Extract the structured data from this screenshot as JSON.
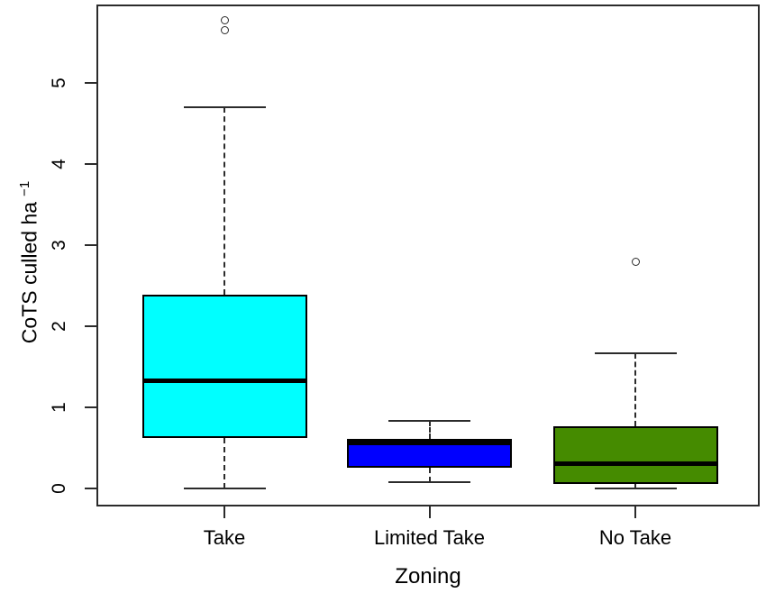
{
  "figure": {
    "background": "#ffffff",
    "axis_color": "#2b2b2b",
    "text_color": "#000000",
    "median_color": "#000000"
  },
  "chart_data": {
    "type": "boxplot",
    "title": "",
    "xlabel": "Zoning",
    "ylabel": "CoTS culled ha",
    "ylabel_superscript": "−1",
    "categories": [
      "Take",
      "Limited Take",
      "No Take"
    ],
    "yticks": [
      0,
      1,
      2,
      3,
      4,
      5
    ],
    "ylim": [
      0,
      5.95
    ],
    "grid": false,
    "legend": false,
    "series": [
      {
        "name": "Take",
        "box_color": "#00ffff",
        "whisker_low": 0.0,
        "q1": 0.62,
        "median": 1.33,
        "q3": 2.39,
        "whisker_high": 4.7,
        "outliers": [
          5.65,
          5.77
        ]
      },
      {
        "name": "Limited Take",
        "box_color": "#0000ff",
        "whisker_low": 0.08,
        "q1": 0.26,
        "median": 0.56,
        "q3": 0.61,
        "whisker_high": 0.83,
        "outliers": []
      },
      {
        "name": "No Take",
        "box_color": "#458b00",
        "whisker_low": 0.0,
        "q1": 0.06,
        "median": 0.31,
        "q3": 0.77,
        "whisker_high": 1.67,
        "outliers": [
          2.8
        ]
      }
    ]
  }
}
